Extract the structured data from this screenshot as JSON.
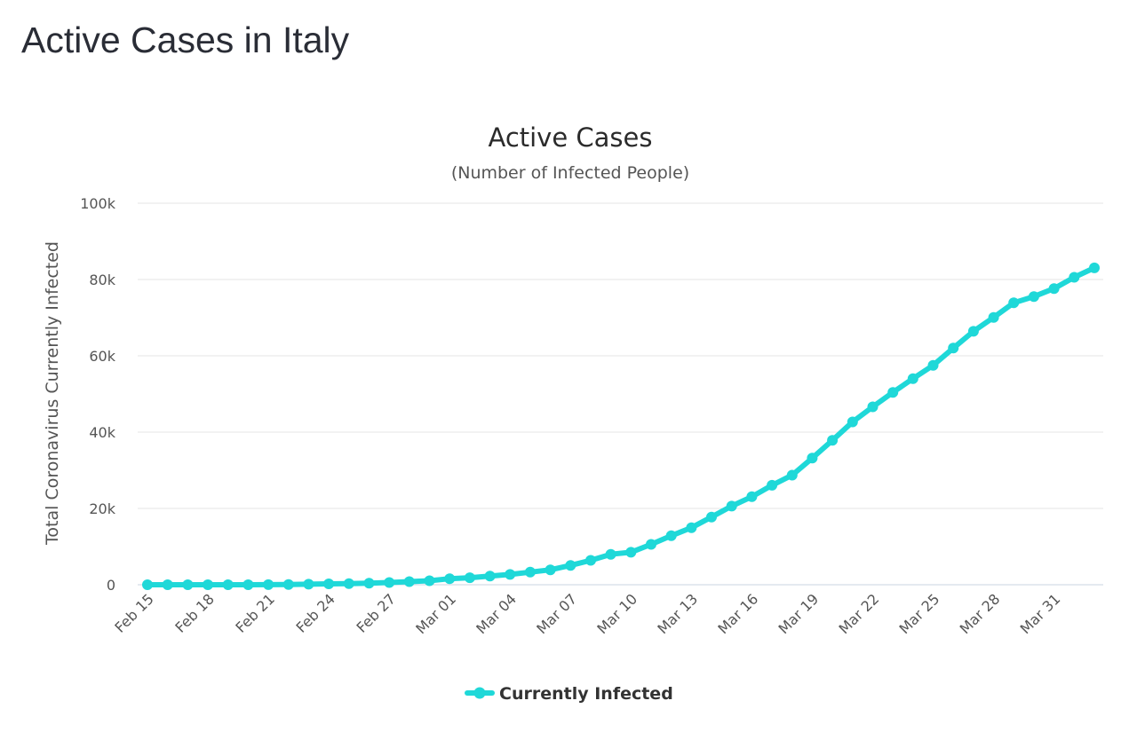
{
  "page": {
    "title": "Active Cases in Italy"
  },
  "chart_data": {
    "type": "line",
    "title": "Active Cases",
    "subtitle": "(Number of Infected People)",
    "xlabel": "",
    "ylabel": "Total Coronavirus Currently Infected",
    "ylim": [
      0,
      100000
    ],
    "yticks": [
      0,
      20000,
      40000,
      60000,
      80000,
      100000
    ],
    "ytick_labels": [
      "0",
      "20k",
      "40k",
      "60k",
      "80k",
      "100k"
    ],
    "x_tick_labels": [
      "Feb 15",
      "Feb 18",
      "Feb 21",
      "Feb 24",
      "Feb 27",
      "Mar 01",
      "Mar 04",
      "Mar 07",
      "Mar 10",
      "Mar 13",
      "Mar 16",
      "Mar 19",
      "Mar 22",
      "Mar 25",
      "Mar 28",
      "Mar 31"
    ],
    "x": [
      "Feb 15",
      "Feb 16",
      "Feb 17",
      "Feb 18",
      "Feb 19",
      "Feb 20",
      "Feb 21",
      "Feb 22",
      "Feb 23",
      "Feb 24",
      "Feb 25",
      "Feb 26",
      "Feb 27",
      "Feb 28",
      "Feb 29",
      "Mar 01",
      "Mar 02",
      "Mar 03",
      "Mar 04",
      "Mar 05",
      "Mar 06",
      "Mar 07",
      "Mar 08",
      "Mar 09",
      "Mar 10",
      "Mar 11",
      "Mar 12",
      "Mar 13",
      "Mar 14",
      "Mar 15",
      "Mar 16",
      "Mar 17",
      "Mar 18",
      "Mar 19",
      "Mar 20",
      "Mar 21",
      "Mar 22",
      "Mar 23",
      "Mar 24",
      "Mar 25",
      "Mar 26",
      "Mar 27",
      "Mar 28",
      "Mar 29",
      "Mar 30",
      "Mar 31",
      "Apr 01",
      "Apr 02"
    ],
    "series": [
      {
        "name": "Currently Infected",
        "color": "#1fd8d8",
        "values": [
          3,
          3,
          3,
          3,
          3,
          3,
          20,
          79,
          150,
          221,
          311,
          385,
          588,
          821,
          1049,
          1577,
          1835,
          2263,
          2706,
          3296,
          3916,
          5061,
          6387,
          7985,
          8514,
          10590,
          12839,
          14955,
          17750,
          20603,
          23073,
          26062,
          28710,
          33190,
          37860,
          42681,
          46638,
          50418,
          54030,
          57521,
          62013,
          66414,
          70065,
          73880,
          75528,
          77635,
          80572,
          83049
        ]
      }
    ],
    "legend_position": "bottom-center",
    "grid": true
  }
}
